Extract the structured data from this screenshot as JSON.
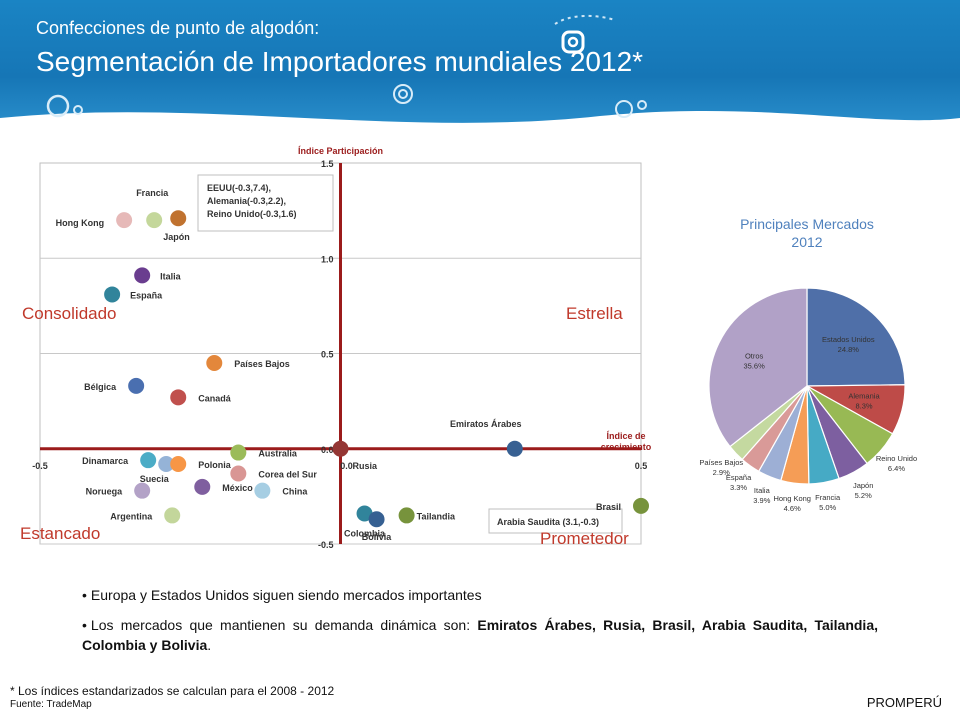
{
  "header": {
    "subtitle": "Confecciones de punto de algodón:",
    "title": "Segmentación de Importadores mundiales 2012*",
    "bg_color": "#1a84c4"
  },
  "chart_data": [
    {
      "type": "scatter",
      "xlabel": "Índice de crecimiento",
      "ylabel": "Índice Participación",
      "xlim": [
        -0.5,
        0.5
      ],
      "ylim": [
        -0.5,
        1.5
      ],
      "xticks": [
        "-0.5",
        "0.0",
        "0.5"
      ],
      "yticks": [
        "1.5",
        "1.0",
        "0.5",
        "0.0",
        "-0.5"
      ],
      "grid": true,
      "quadrants": [
        "Consolidado",
        "Estrella",
        "Estancado",
        "Prometedor"
      ],
      "annotation_lines": [
        "EEUU(-0.3,7.4),",
        "Alemania(-0.3,2.2),",
        "Reino Unido(-0.3,1.6)",
        "Arabia Saudita (3.1,-0.3)"
      ],
      "points": [
        {
          "label": "Hong Kong",
          "x": -0.36,
          "y": 1.2,
          "color": "#e6b9b8"
        },
        {
          "label": "Francia",
          "x": -0.31,
          "y": 1.2,
          "color": "#c4d79b"
        },
        {
          "label": "Japón",
          "x": -0.27,
          "y": 1.21,
          "color": "#c0722f"
        },
        {
          "label": "Italia",
          "x": -0.33,
          "y": 0.91,
          "color": "#6a3d8f"
        },
        {
          "label": "España",
          "x": -0.38,
          "y": 0.81,
          "color": "#31849b"
        },
        {
          "label": "Países Bajos",
          "x": -0.21,
          "y": 0.45,
          "color": "#e3873b"
        },
        {
          "label": "Bélgica",
          "x": -0.34,
          "y": 0.33,
          "color": "#4a6fb0"
        },
        {
          "label": "Canadá",
          "x": -0.27,
          "y": 0.27,
          "color": "#c0504d"
        },
        {
          "label": "Australia",
          "x": -0.17,
          "y": -0.02,
          "color": "#9bbb59"
        },
        {
          "label": "Dinamarca",
          "x": -0.32,
          "y": -0.06,
          "color": "#4bacc6"
        },
        {
          "label": "Suecia",
          "x": -0.29,
          "y": -0.08,
          "color": "#95b3d7"
        },
        {
          "label": "Polonia",
          "x": -0.27,
          "y": -0.08,
          "color": "#f79646"
        },
        {
          "label": "Corea del Sur",
          "x": -0.17,
          "y": -0.13,
          "color": "#d99694"
        },
        {
          "label": "México",
          "x": -0.23,
          "y": -0.2,
          "color": "#7f5f9f"
        },
        {
          "label": "China",
          "x": -0.13,
          "y": -0.22,
          "color": "#a6cee3"
        },
        {
          "label": "Noruega",
          "x": -0.33,
          "y": -0.22,
          "color": "#b3a2c7"
        },
        {
          "label": "Argentina",
          "x": -0.28,
          "y": -0.35,
          "color": "#c3d69b"
        },
        {
          "label": "Rusia",
          "x": 0.0,
          "y": 0.0,
          "color": "#943634"
        },
        {
          "label": "Emiratos Árabes",
          "x": 0.29,
          "y": 0.0,
          "color": "#376092"
        },
        {
          "label": "Colombia",
          "x": 0.04,
          "y": -0.34,
          "color": "#31849b"
        },
        {
          "label": "Bolivia",
          "x": 0.06,
          "y": -0.37,
          "color": "#366092"
        },
        {
          "label": "Tailandia",
          "x": 0.11,
          "y": -0.35,
          "color": "#77933c"
        },
        {
          "label": "Brasil",
          "x": 0.5,
          "y": -0.3,
          "color": "#77933c"
        }
      ]
    },
    {
      "type": "pie",
      "title": "Principales Mercados 2012",
      "slices": [
        {
          "label": "Estados Unidos",
          "value": 24.8,
          "display": "24.8%",
          "color": "#4f6fa8"
        },
        {
          "label": "Alemania",
          "value": 8.3,
          "display": "8.3%",
          "color": "#be4b48"
        },
        {
          "label": "Reino Unido",
          "value": 6.4,
          "display": "6.4%",
          "color": "#98b954"
        },
        {
          "label": "Japón",
          "value": 5.2,
          "display": "5.2%",
          "color": "#7d5fa0"
        },
        {
          "label": "Francia",
          "value": 5.0,
          "display": "5.0%",
          "color": "#46aac5"
        },
        {
          "label": "Hong Kong",
          "value": 4.6,
          "display": "4.6%",
          "color": "#f59d56"
        },
        {
          "label": "Italia",
          "value": 3.9,
          "display": "3.9%",
          "color": "#9dafd5"
        },
        {
          "label": "España",
          "value": 3.3,
          "display": "3.3%",
          "color": "#d99a98"
        },
        {
          "label": "Países Bajos",
          "value": 2.9,
          "display": "2.9%",
          "color": "#c4d9a0"
        },
        {
          "label": "Otros",
          "value": 35.6,
          "display": "35.6%",
          "color": "#b1a1c7"
        }
      ]
    }
  ],
  "quadrant_colors": {
    "label": "#c0392b",
    "axis": "#9b1b1b",
    "frame": "#bfbfbf"
  },
  "bullets": {
    "b1": "Europa y Estados Unidos siguen siendo mercados importantes",
    "b2_prefix": "Los mercados que mantienen su demanda dinámica son: ",
    "b2_bold": "Emiratos Árabes, Rusia, Brasil, Arabia Saudita, Tailandia, Colombia y Bolivia",
    "b2_suffix": "."
  },
  "footnote": "* Los índices estandarizados se calculan para el 2008 - 2012",
  "source": "Fuente: TradeMap",
  "brand": "PROMPERÚ"
}
